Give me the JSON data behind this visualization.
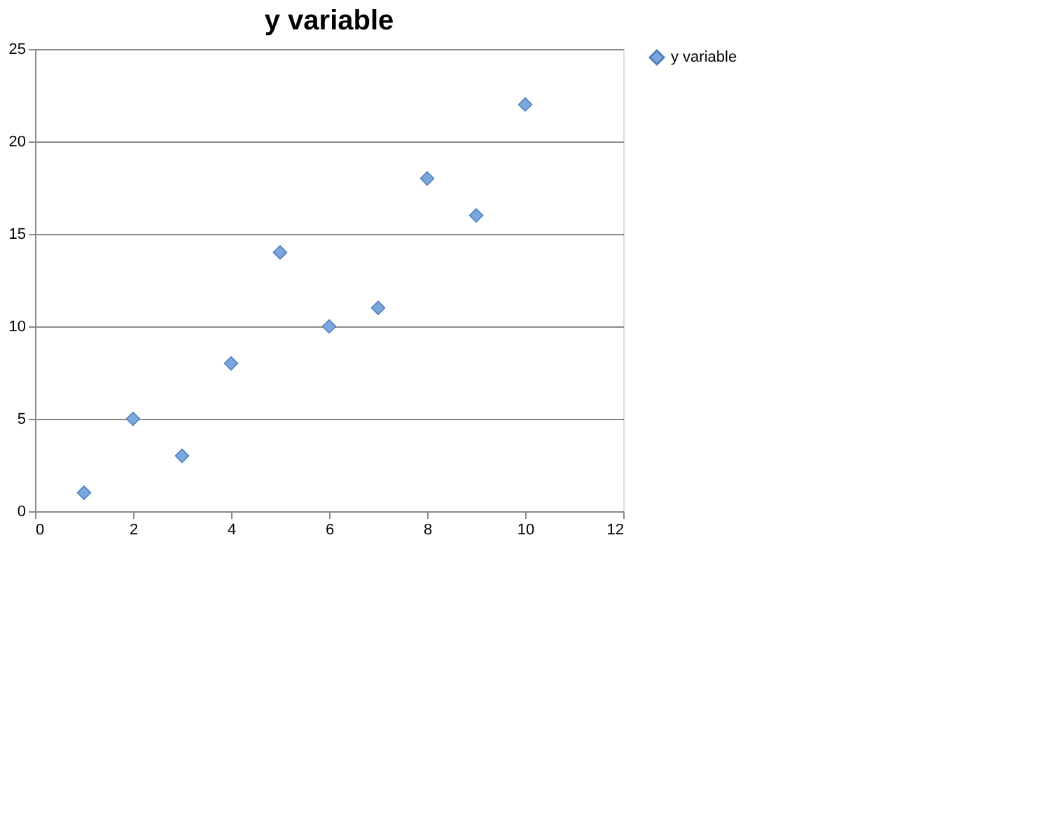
{
  "chart_data": {
    "type": "scatter",
    "title": "y variable",
    "x": [
      1,
      2,
      3,
      4,
      5,
      6,
      7,
      8,
      9,
      10
    ],
    "series": [
      {
        "name": "y variable",
        "color": "#7ba7dc",
        "values": [
          1,
          5,
          3,
          8,
          14,
          10,
          11,
          18,
          16,
          22
        ]
      }
    ],
    "xlim": [
      0,
      12
    ],
    "xticks": [
      0,
      2,
      4,
      6,
      8,
      10,
      12
    ],
    "ylim": [
      0,
      25
    ],
    "yticks": [
      0,
      5,
      10,
      15,
      20,
      25
    ],
    "grid": "y",
    "legend": "right",
    "marker": "diamond"
  }
}
